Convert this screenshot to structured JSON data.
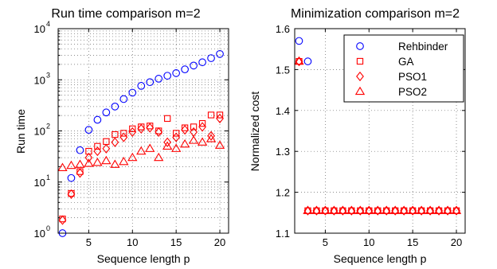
{
  "chart_data": [
    {
      "type": "scatter",
      "title": "Run time comparison m=2",
      "xlabel": "Sequence length p",
      "ylabel": "Run time",
      "xscale": "linear",
      "yscale": "log",
      "xlim": [
        1.5,
        21
      ],
      "ylim": [
        1,
        10000
      ],
      "xticks": [
        5,
        10,
        15,
        20
      ],
      "ytick_labels": [
        {
          "value": 1,
          "base": "10",
          "exp": "0"
        },
        {
          "value": 10,
          "base": "10",
          "exp": "1"
        },
        {
          "value": 100,
          "base": "10",
          "exp": "2"
        },
        {
          "value": 1000,
          "base": "10",
          "exp": "3"
        },
        {
          "value": 10000,
          "base": "10",
          "exp": "4"
        }
      ],
      "grid": true,
      "series": [
        {
          "name": "Rehbinder",
          "marker": "circle",
          "color": "#0000ff",
          "x": [
            2,
            3,
            4,
            5,
            6,
            7,
            8,
            9,
            10,
            11,
            12,
            13,
            14,
            15,
            16,
            17,
            18,
            19,
            20
          ],
          "y": [
            1.0,
            12,
            42,
            105,
            165,
            230,
            300,
            420,
            560,
            760,
            900,
            1050,
            1200,
            1350,
            1600,
            1900,
            2200,
            2650,
            3200
          ]
        },
        {
          "name": "GA",
          "marker": "square",
          "color": "#ff0000",
          "x": [
            2,
            3,
            4,
            5,
            6,
            7,
            8,
            9,
            10,
            11,
            12,
            13,
            14,
            15,
            16,
            17,
            18,
            19,
            20
          ],
          "y": [
            1.9,
            6.0,
            16,
            40,
            50,
            62,
            85,
            90,
            110,
            120,
            125,
            100,
            175,
            90,
            115,
            120,
            140,
            205,
            205
          ]
        },
        {
          "name": "PSO1",
          "marker": "diamond",
          "color": "#ff0000",
          "x": [
            2,
            3,
            4,
            5,
            6,
            7,
            8,
            9,
            10,
            11,
            12,
            13,
            14,
            15,
            16,
            17,
            18,
            19,
            20
          ],
          "y": [
            1.8,
            5.8,
            15,
            30,
            40,
            45,
            60,
            75,
            95,
            110,
            115,
            95,
            60,
            75,
            105,
            95,
            120,
            80,
            175
          ]
        },
        {
          "name": "PSO2",
          "marker": "triangle",
          "color": "#ff0000",
          "x": [
            2,
            3,
            4,
            5,
            6,
            7,
            8,
            9,
            10,
            11,
            12,
            13,
            14,
            15,
            16,
            17,
            18,
            19,
            20
          ],
          "y": [
            19,
            21,
            22,
            23,
            24,
            26,
            22,
            25,
            30,
            40,
            45,
            30,
            50,
            45,
            55,
            65,
            60,
            70,
            52
          ]
        }
      ]
    },
    {
      "type": "scatter",
      "title": "Minimization comparison m=2",
      "xlabel": "Sequence length p",
      "ylabel": "Normalized cost",
      "xscale": "linear",
      "yscale": "linear",
      "xlim": [
        1.5,
        21
      ],
      "ylim": [
        1.1,
        1.6
      ],
      "xticks": [
        5,
        10,
        15,
        20
      ],
      "yticks": [
        1.1,
        1.2,
        1.3,
        1.4,
        1.5,
        1.6
      ],
      "ytick_labels": [
        "1.1",
        "1.2",
        "1.3",
        "1.4",
        "1.5",
        "1.6"
      ],
      "grid": true,
      "legend": {
        "placement": "top-right",
        "entries": [
          "Rehbinder",
          "GA",
          "PSO1",
          "PSO2"
        ]
      },
      "series": [
        {
          "name": "Rehbinder",
          "marker": "circle",
          "color": "#0000ff",
          "x": [
            2,
            3
          ],
          "y": [
            1.57,
            1.52
          ]
        },
        {
          "name": "GA",
          "marker": "square",
          "color": "#ff0000",
          "x": [
            2,
            3,
            4,
            5,
            6,
            7,
            8,
            9,
            10,
            11,
            12,
            13,
            14,
            15,
            16,
            17,
            18,
            19,
            20
          ],
          "y": [
            1.52,
            1.155,
            1.155,
            1.155,
            1.155,
            1.155,
            1.155,
            1.155,
            1.155,
            1.155,
            1.155,
            1.155,
            1.155,
            1.155,
            1.155,
            1.155,
            1.155,
            1.155,
            1.155
          ]
        },
        {
          "name": "PSO1",
          "marker": "diamond",
          "color": "#ff0000",
          "x": [
            2,
            3,
            4,
            5,
            6,
            7,
            8,
            9,
            10,
            11,
            12,
            13,
            14,
            15,
            16,
            17,
            18,
            19,
            20
          ],
          "y": [
            1.52,
            1.155,
            1.155,
            1.155,
            1.155,
            1.155,
            1.155,
            1.155,
            1.155,
            1.155,
            1.155,
            1.155,
            1.155,
            1.155,
            1.155,
            1.155,
            1.155,
            1.155,
            1.155
          ]
        },
        {
          "name": "PSO2",
          "marker": "triangle",
          "color": "#ff0000",
          "x": [
            2,
            3,
            4,
            5,
            6,
            7,
            8,
            9,
            10,
            11,
            12,
            13,
            14,
            15,
            16,
            17,
            18,
            19,
            20
          ],
          "y": [
            1.52,
            1.155,
            1.155,
            1.155,
            1.155,
            1.155,
            1.155,
            1.155,
            1.155,
            1.155,
            1.155,
            1.155,
            1.155,
            1.155,
            1.155,
            1.155,
            1.155,
            1.155,
            1.155
          ]
        }
      ]
    }
  ]
}
